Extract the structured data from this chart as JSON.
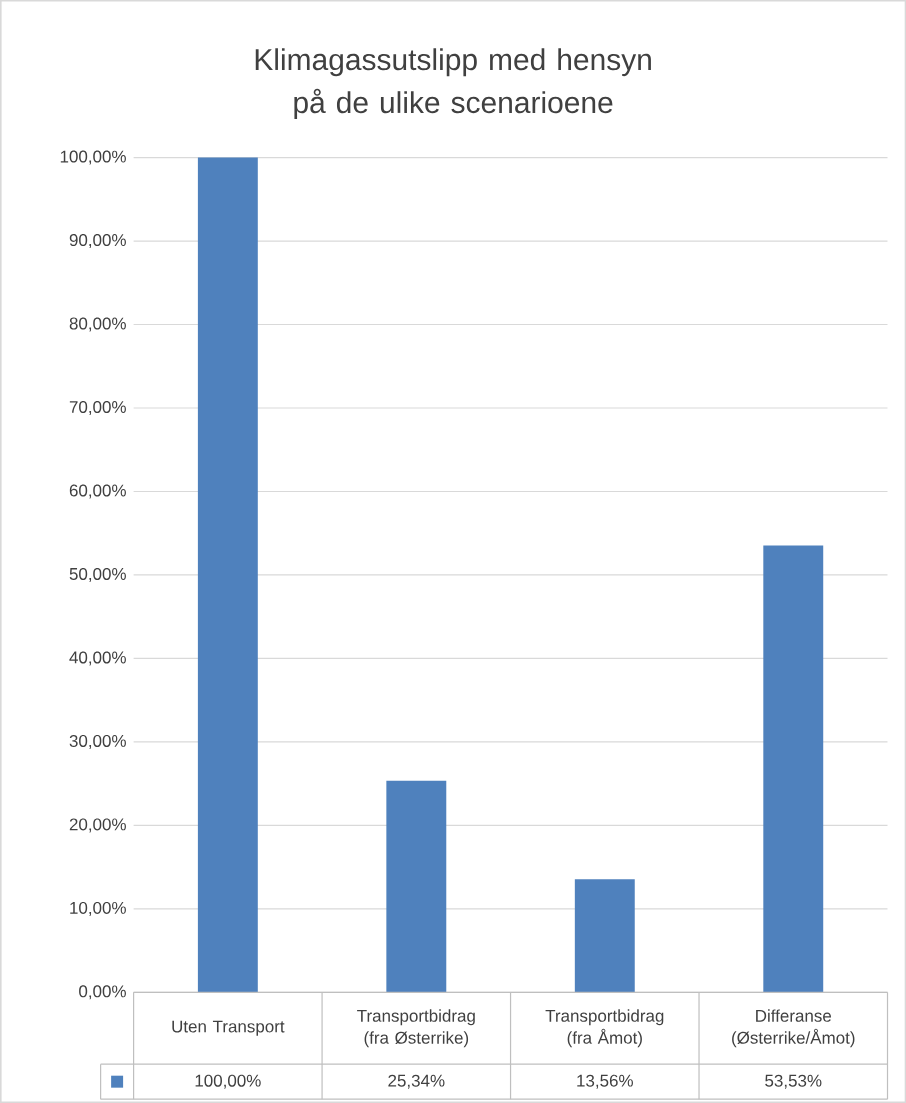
{
  "chart_data": {
    "type": "bar",
    "title": "Klimagassutslipp med hensyn på de ulike scenarioene",
    "categories": [
      "Uten Transport",
      "Transportbidrag (fra Østerrike)",
      "Transportbidrag (fra Åmot)",
      "Differanse (Østerrike/Åmot)"
    ],
    "values": [
      100,
      25.34,
      13.56,
      53.53
    ],
    "value_labels": [
      "100,00%",
      "25,34%",
      "13,56%",
      "53,53%"
    ],
    "color": "#4f81bd",
    "ylim": [
      0,
      100
    ],
    "yticks": [
      {
        "value": 0,
        "label": "0,00%"
      },
      {
        "value": 10,
        "label": "10,00%"
      },
      {
        "value": 20,
        "label": "20,00%"
      },
      {
        "value": 30,
        "label": "30,00%"
      },
      {
        "value": 40,
        "label": "40,00%"
      },
      {
        "value": 50,
        "label": "50,00%"
      },
      {
        "value": 60,
        "label": "60,00%"
      },
      {
        "value": 70,
        "label": "70,00%"
      },
      {
        "value": 80,
        "label": "80,00%"
      },
      {
        "value": 90,
        "label": "90,00%"
      },
      {
        "value": 100,
        "label": "100,00%"
      }
    ],
    "grid": "y"
  }
}
